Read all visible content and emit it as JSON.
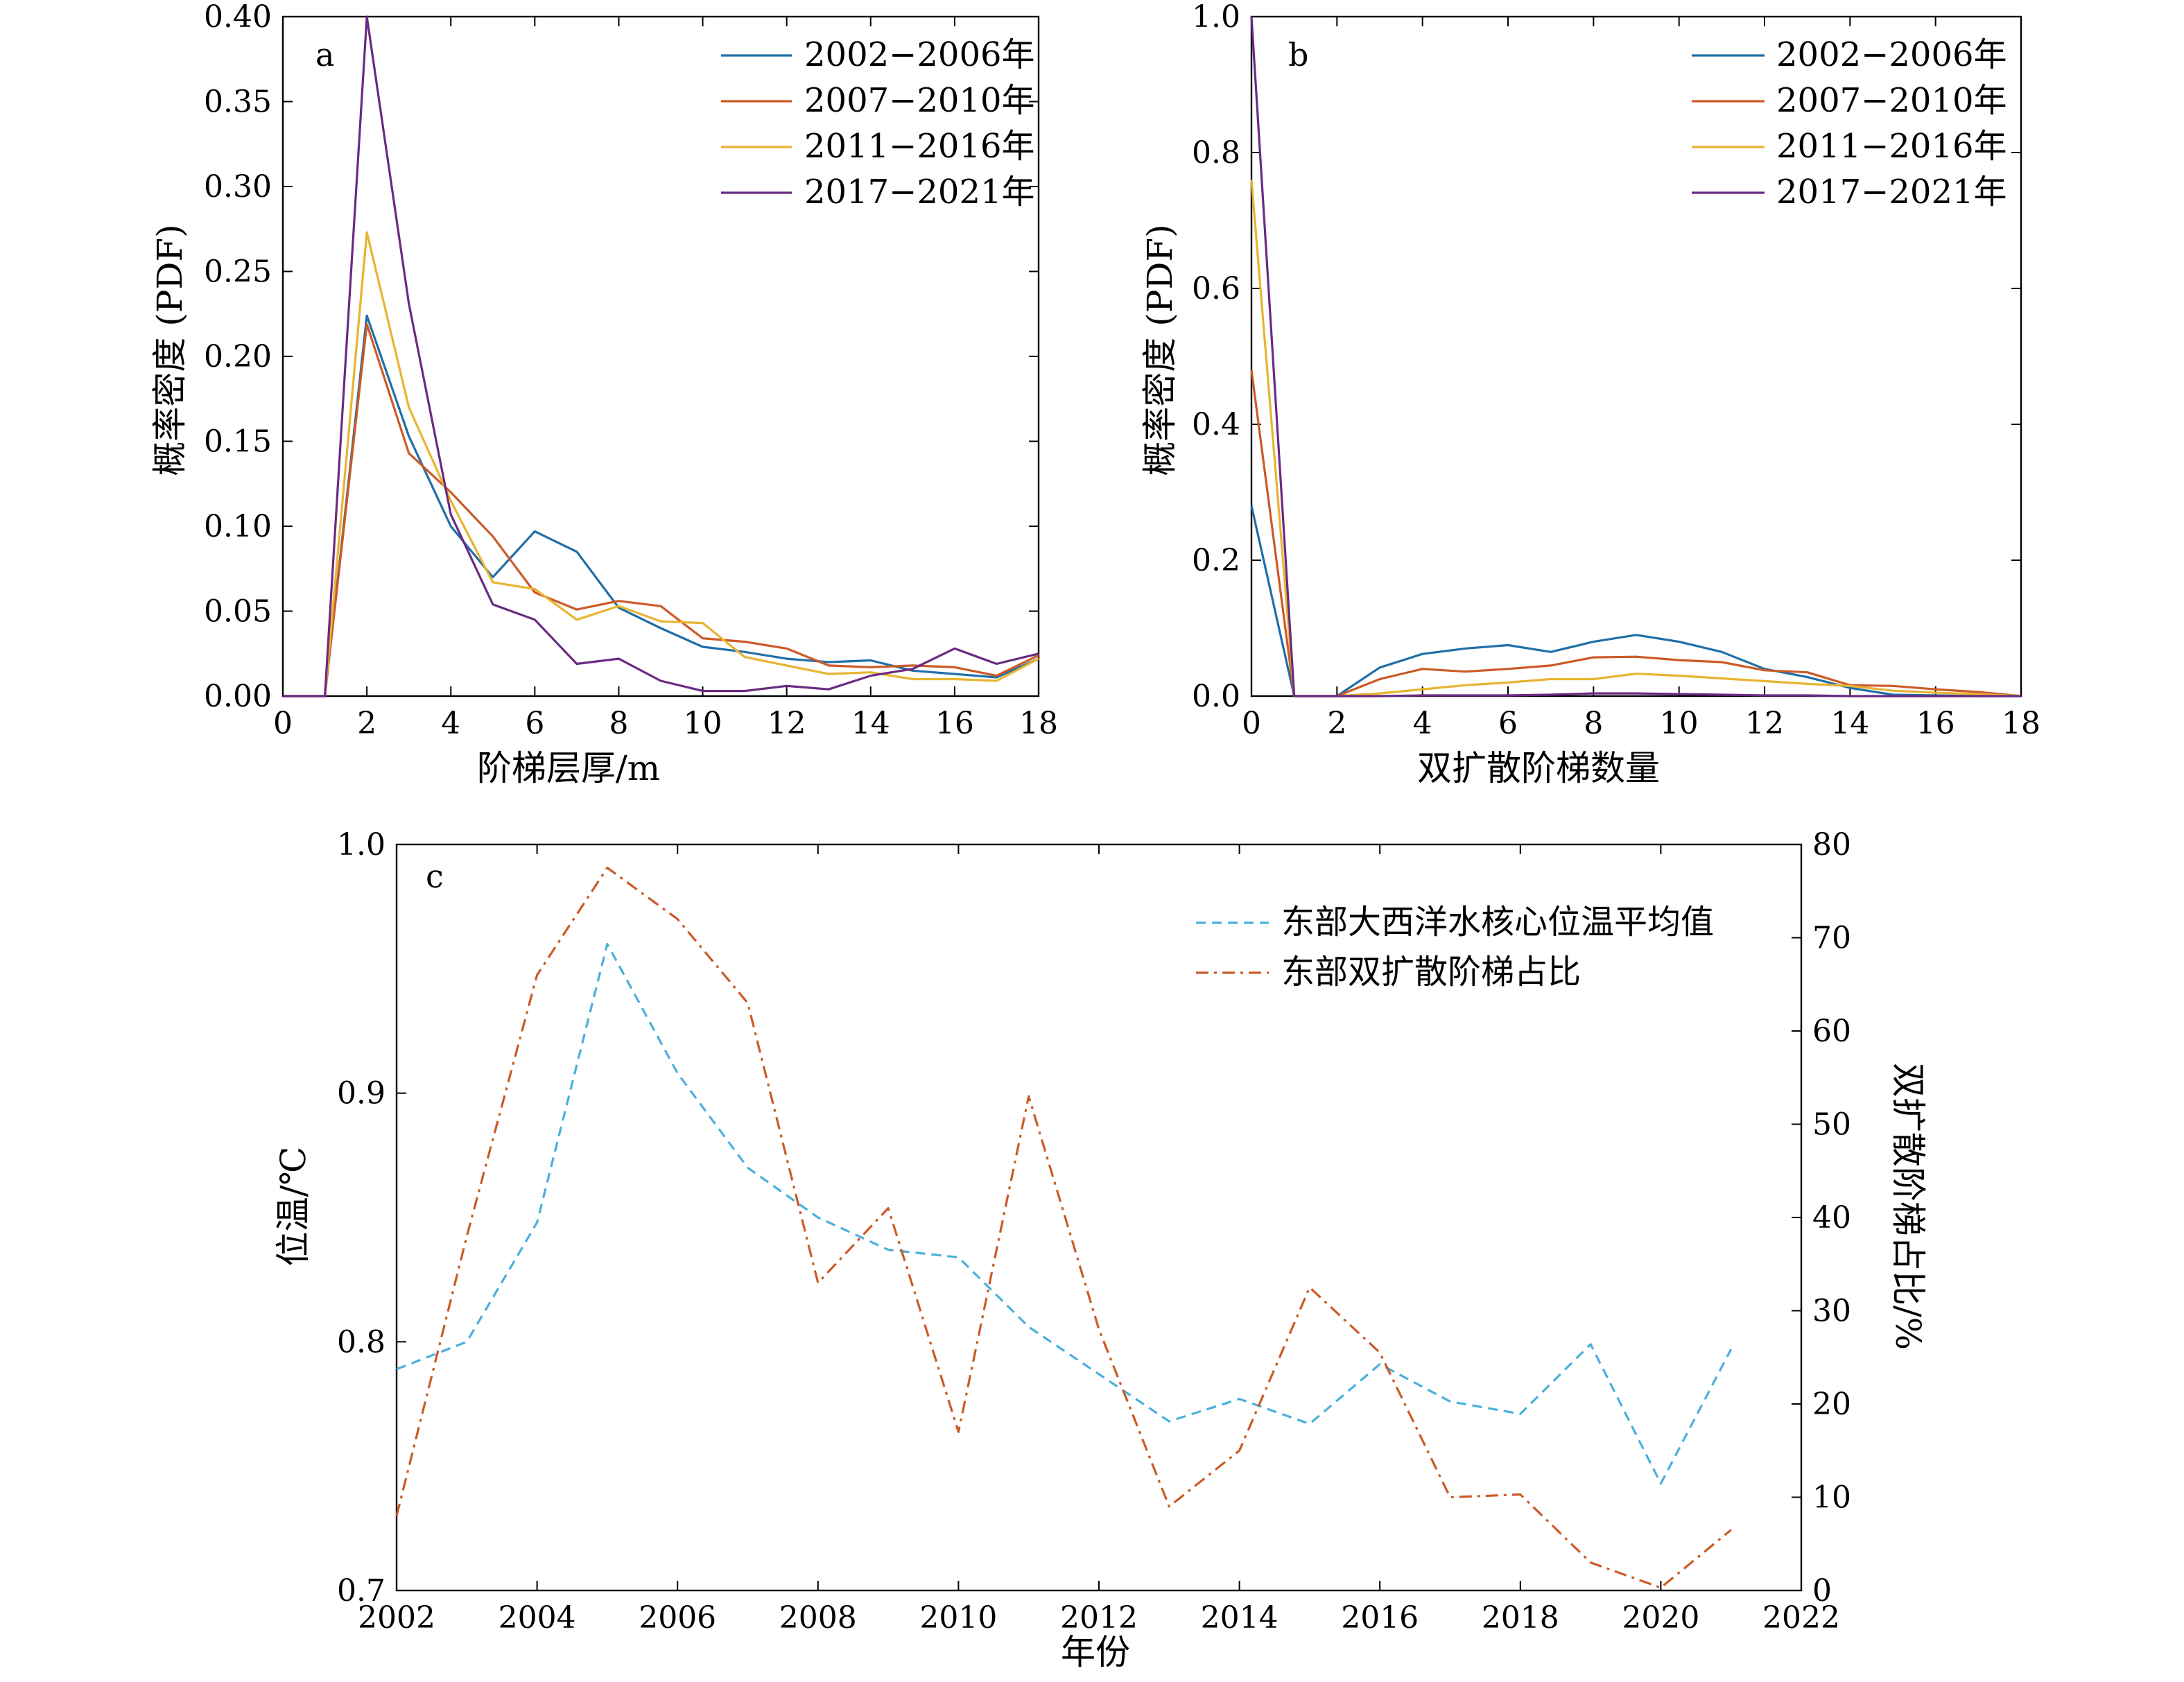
{
  "chart_data": [
    {
      "id": "a",
      "type": "line",
      "panel_label": "a",
      "xlabel": "阶梯层厚/m",
      "ylabel": "概率密度 (PDF)",
      "xlim": [
        0,
        18
      ],
      "ylim": [
        0,
        0.4
      ],
      "xticks": [
        0,
        2,
        4,
        6,
        8,
        10,
        12,
        14,
        16,
        18
      ],
      "yticks": [
        0,
        0.05,
        0.1,
        0.15,
        0.2,
        0.25,
        0.3,
        0.35,
        0.4
      ],
      "ytick_labels": [
        "0.00",
        "0.05",
        "0.10",
        "0.15",
        "0.20",
        "0.25",
        "0.30",
        "0.35",
        "0.40"
      ],
      "legend_position": "top-right",
      "x": [
        0,
        1,
        2,
        3,
        4,
        5,
        6,
        7,
        8,
        9,
        10,
        11,
        12,
        13,
        14,
        15,
        16,
        17,
        18
      ],
      "series": [
        {
          "name": "2002−2006年",
          "color": "#1f6fa8",
          "values": [
            0,
            0,
            0.224,
            0.153,
            0.1,
            0.07,
            0.097,
            0.085,
            0.052,
            0.04,
            0.029,
            0.026,
            0.022,
            0.02,
            0.021,
            0.015,
            0.013,
            0.011,
            0.022
          ]
        },
        {
          "name": "2007−2010年",
          "color": "#cc5a27",
          "values": [
            0,
            0,
            0.219,
            0.143,
            0.12,
            0.094,
            0.061,
            0.051,
            0.056,
            0.053,
            0.034,
            0.032,
            0.028,
            0.018,
            0.017,
            0.018,
            0.017,
            0.012,
            0.024
          ]
        },
        {
          "name": "2011−2016年",
          "color": "#e8b430",
          "values": [
            0,
            0,
            0.273,
            0.17,
            0.115,
            0.067,
            0.063,
            0.045,
            0.053,
            0.044,
            0.043,
            0.023,
            0.018,
            0.013,
            0.014,
            0.01,
            0.01,
            0.009,
            0.022
          ]
        },
        {
          "name": "2017−2021年",
          "color": "#6a2a82",
          "values": [
            0,
            0,
            0.4,
            0.231,
            0.107,
            0.054,
            0.045,
            0.019,
            0.022,
            0.009,
            0.003,
            0.003,
            0.006,
            0.004,
            0.012,
            0.016,
            0.028,
            0.019,
            0.025
          ]
        }
      ]
    },
    {
      "id": "b",
      "type": "line",
      "panel_label": "b",
      "xlabel": "双扩散阶梯数量",
      "ylabel": "概率密度 (PDF)",
      "xlim": [
        0,
        18
      ],
      "ylim": [
        0,
        1.0
      ],
      "xticks": [
        0,
        2,
        4,
        6,
        8,
        10,
        12,
        14,
        16,
        18
      ],
      "yticks": [
        0,
        0.2,
        0.4,
        0.6,
        0.8,
        1.0
      ],
      "ytick_labels": [
        "0.0",
        "0.2",
        "0.4",
        "0.6",
        "0.8",
        "1.0"
      ],
      "legend_position": "top-right",
      "x": [
        0,
        1,
        2,
        3,
        4,
        5,
        6,
        7,
        8,
        9,
        10,
        11,
        12,
        13,
        14,
        15,
        16,
        17,
        18
      ],
      "series": [
        {
          "name": "2002−2006年",
          "color": "#1f6fa8",
          "values": [
            0.28,
            0,
            0,
            0.042,
            0.062,
            0.07,
            0.075,
            0.065,
            0.08,
            0.09,
            0.08,
            0.065,
            0.04,
            0.028,
            0.012,
            0.002,
            0.001,
            0,
            0
          ]
        },
        {
          "name": "2007−2010年",
          "color": "#cc5a27",
          "values": [
            0.48,
            0,
            0,
            0.025,
            0.04,
            0.036,
            0.04,
            0.045,
            0.057,
            0.058,
            0.053,
            0.05,
            0.038,
            0.035,
            0.016,
            0.015,
            0.01,
            0.006,
            0
          ]
        },
        {
          "name": "2011−2016年",
          "color": "#e8b430",
          "values": [
            0.76,
            0,
            0,
            0.004,
            0.01,
            0.016,
            0.02,
            0.025,
            0.025,
            0.033,
            0.03,
            0.026,
            0.022,
            0.018,
            0.015,
            0.008,
            0.005,
            0.003,
            0
          ]
        },
        {
          "name": "2017−2021年",
          "color": "#6a2a82",
          "values": [
            1.0,
            0,
            0,
            0,
            0.001,
            0.001,
            0.001,
            0.002,
            0.004,
            0.004,
            0.003,
            0.002,
            0.001,
            0.001,
            0,
            0,
            0,
            0,
            0
          ]
        }
      ]
    },
    {
      "id": "c",
      "type": "line",
      "panel_label": "c",
      "xlabel": "年份",
      "ylabel": "位温/℃",
      "y2label": "双扩散阶梯占比/%",
      "xlim": [
        2002,
        2022
      ],
      "ylim": [
        0.7,
        1.0
      ],
      "y2lim": [
        0,
        80
      ],
      "xticks": [
        2002,
        2004,
        2006,
        2008,
        2010,
        2012,
        2014,
        2016,
        2018,
        2020,
        2022
      ],
      "yticks": [
        0.7,
        0.8,
        0.9,
        1.0
      ],
      "ytick_labels": [
        "0.7",
        "0.8",
        "0.9",
        "1.0"
      ],
      "y2ticks": [
        0,
        10,
        20,
        30,
        40,
        50,
        60,
        70,
        80
      ],
      "legend_position": "top-right",
      "x": [
        2002,
        2003,
        2004,
        2005,
        2006,
        2007,
        2008,
        2009,
        2010,
        2011,
        2012,
        2013,
        2014,
        2015,
        2016,
        2017,
        2018,
        2019,
        2020,
        2021
      ],
      "series": [
        {
          "name": "东部大西洋水核心位温平均值",
          "color": "#4ab0dc",
          "dash": "dashed",
          "axis": "left",
          "values": [
            0.789,
            0.8,
            0.848,
            0.96,
            0.908,
            0.87,
            0.85,
            0.837,
            0.834,
            0.806,
            0.787,
            0.768,
            0.777,
            0.767,
            0.791,
            0.776,
            0.771,
            0.799,
            0.743,
            0.797
          ]
        },
        {
          "name": "东部双扩散阶梯占比",
          "color": "#cc5a27",
          "dash": "dashdot",
          "axis": "right",
          "values": [
            8,
            38,
            66,
            77.5,
            72,
            63,
            33,
            41,
            17,
            53,
            28,
            9,
            15,
            32.5,
            25.5,
            10,
            10.3,
            3,
            0.3,
            6.5
          ]
        }
      ]
    }
  ]
}
